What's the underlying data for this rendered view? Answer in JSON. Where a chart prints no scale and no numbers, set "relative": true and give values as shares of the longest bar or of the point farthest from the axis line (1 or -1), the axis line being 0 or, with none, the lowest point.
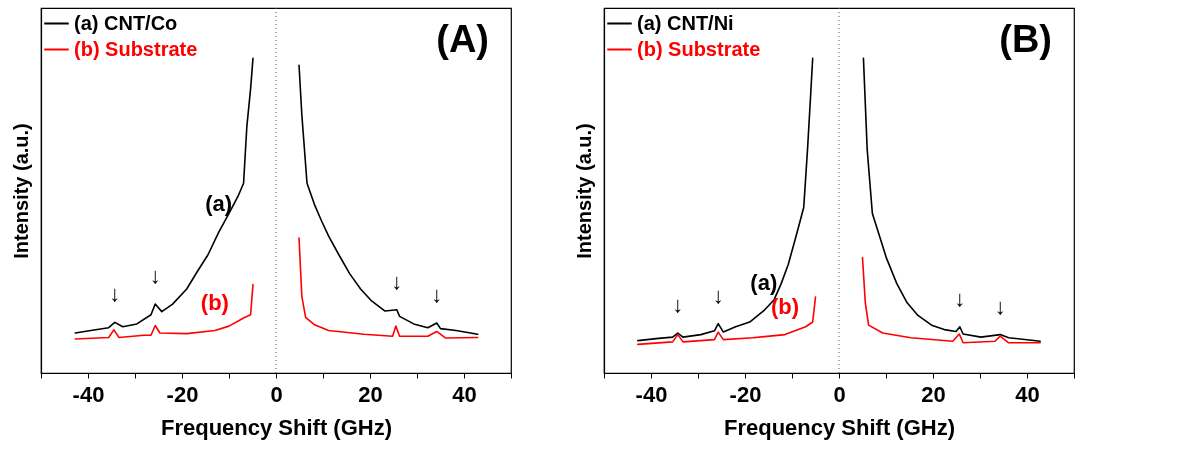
{
  "chart_data": [
    {
      "type": "line",
      "relative": true,
      "xlabel": "Frequency Shift (GHz)",
      "ylabel": "Intensity (a.u.)",
      "xlim": [
        -50,
        50
      ],
      "xticks": [
        {
          "value": -50,
          "label": null
        },
        -40,
        {
          "value": -30,
          "label": null
        },
        -20,
        {
          "value": -10,
          "label": null
        },
        0,
        {
          "value": 10,
          "label": null
        },
        20,
        {
          "value": 30,
          "label": null
        },
        40,
        {
          "value": 50,
          "label": null
        }
      ],
      "legend": "top left",
      "line_style": "solid",
      "grid": false,
      "series": [
        {
          "name": "(a) CNT/Co",
          "color": "#000000",
          "x": [
            -42.7,
            -39.4,
            -35.6,
            -34.3,
            -32.6,
            -29.6,
            -26.6,
            -25.7,
            -24.3,
            -22.0,
            -19.0,
            -16.8,
            -14.5,
            -12.2,
            -10.0,
            -8.1,
            -6.9,
            -6.2,
            -5.4,
            -4.9,
            0,
            4.9,
            5.5,
            6.6,
            8.3,
            9.7,
            11.2,
            13.4,
            15.7,
            18.0,
            20.2,
            23.2,
            25.7,
            26.3,
            29.3,
            32.3,
            34.2,
            35.0,
            38.3,
            42.9
          ],
          "values": [
            0.127,
            0.135,
            0.144,
            0.161,
            0.147,
            0.156,
            0.185,
            0.219,
            0.195,
            0.219,
            0.267,
            0.321,
            0.375,
            0.447,
            0.507,
            0.561,
            0.603,
            0.784,
            0.904,
            1.0,
            null,
            0.978,
            0.82,
            0.603,
            0.531,
            0.483,
            0.435,
            0.375,
            0.315,
            0.267,
            0.231,
            0.197,
            0.201,
            0.18,
            0.156,
            0.144,
            0.159,
            0.141,
            0.135,
            0.123
          ]
        },
        {
          "name": "(b) Substrate",
          "color": "#ff0000",
          "x": [
            -42.7,
            -35.6,
            -34.5,
            -33.4,
            -28.1,
            -26.6,
            -25.7,
            -24.7,
            -19.0,
            -13.0,
            -10.0,
            -6.9,
            -5.4,
            -4.9,
            0,
            4.9,
            5.5,
            6.3,
            8.2,
            11.2,
            18.7,
            24.8,
            25.5,
            26.3,
            32.3,
            34.2,
            36.1,
            42.9
          ],
          "values": [
            0.108,
            0.113,
            0.137,
            0.113,
            0.12,
            0.12,
            0.151,
            0.127,
            0.125,
            0.135,
            0.149,
            0.175,
            0.185,
            0.281,
            null,
            0.429,
            0.243,
            0.177,
            0.153,
            0.135,
            0.123,
            0.117,
            0.149,
            0.117,
            0.117,
            0.132,
            0.111,
            0.113
          ]
        }
      ],
      "ref_lines": [
        {
          "axis": "x",
          "value": 0,
          "line_style": "dotted",
          "color": "#555555"
        }
      ],
      "annotations": [
        "(A)",
        {
          "text": "(a)",
          "x": -12.2,
          "y": 0.447
        },
        {
          "text": "(b)",
          "x": -13.0,
          "y": 0.135
        },
        {
          "text": "↓",
          "x": -34.3,
          "y": 0.161
        },
        {
          "text": "↓",
          "x": -25.7,
          "y": 0.219
        },
        {
          "text": "↓",
          "x": 25.7,
          "y": 0.201
        },
        {
          "text": "↓",
          "x": 34.2,
          "y": 0.159
        }
      ]
    },
    {
      "type": "line",
      "relative": true,
      "xlabel": "Frequency Shift (GHz)",
      "ylabel": "Intensity (a.u.)",
      "xlim": [
        -50,
        50
      ],
      "xticks": [
        {
          "value": -50,
          "label": null
        },
        -40,
        {
          "value": -30,
          "label": null
        },
        -20,
        {
          "value": -10,
          "label": null
        },
        0,
        {
          "value": 10,
          "label": null
        },
        20,
        {
          "value": 30,
          "label": null
        },
        40,
        {
          "value": 50,
          "label": null
        }
      ],
      "legend": "top left",
      "line_style": "solid",
      "grid": false,
      "series": [
        {
          "name": "(a) CNT/Ni",
          "color": "#000000",
          "x": [
            -42.8,
            -38.4,
            -35.4,
            -34.3,
            -33.2,
            -29.4,
            -26.5,
            -25.7,
            -24.6,
            -22.0,
            -19.0,
            -16.0,
            -13.8,
            -12.3,
            -10.8,
            -9.3,
            -8.2,
            -7.5,
            -6.7,
            -6.0,
            -5.6,
            0,
            5.2,
            6.0,
            7.1,
            8.6,
            10.1,
            12.3,
            14.5,
            16.8,
            19.7,
            22.7,
            24.9,
            25.7,
            26.4,
            30.2,
            34.3,
            36.1,
            42.8
          ],
          "values": [
            0.103,
            0.11,
            0.114,
            0.127,
            0.114,
            0.122,
            0.134,
            0.157,
            0.13,
            0.147,
            0.162,
            0.198,
            0.233,
            0.284,
            0.345,
            0.426,
            0.487,
            0.527,
            0.71,
            0.892,
            1.0,
            null,
            1.0,
            0.71,
            0.507,
            0.436,
            0.365,
            0.284,
            0.223,
            0.183,
            0.152,
            0.137,
            0.132,
            0.147,
            0.124,
            0.114,
            0.122,
            0.112,
            0.101
          ]
        },
        {
          "name": "(b) Substrate",
          "color": "#ff0000",
          "x": [
            -42.8,
            -35.4,
            -34.3,
            -33.2,
            -26.5,
            -25.7,
            -24.6,
            -18.3,
            -11.5,
            -7.1,
            -5.6,
            -5.0,
            0,
            5.0,
            5.6,
            6.3,
            9.3,
            15.3,
            24.2,
            25.6,
            26.4,
            33.2,
            34.3,
            36.1,
            42.8
          ],
          "values": [
            0.091,
            0.099,
            0.122,
            0.099,
            0.106,
            0.13,
            0.106,
            0.112,
            0.122,
            0.147,
            0.162,
            0.241,
            null,
            0.367,
            0.223,
            0.152,
            0.127,
            0.112,
            0.101,
            0.124,
            0.096,
            0.101,
            0.117,
            0.096,
            0.096
          ]
        }
      ],
      "ref_lines": [
        {
          "axis": "x",
          "value": 0,
          "line_style": "dotted",
          "color": "#555555"
        }
      ],
      "annotations": [
        "(B)",
        {
          "text": "(a)",
          "x": -16.0,
          "y": 0.198
        },
        {
          "text": "(b)",
          "x": -11.5,
          "y": 0.122
        },
        {
          "text": "↓",
          "x": -34.3,
          "y": 0.127
        },
        {
          "text": "↓",
          "x": -25.7,
          "y": 0.157
        },
        {
          "text": "↓",
          "x": 25.7,
          "y": 0.147
        },
        {
          "text": "↓",
          "x": 34.3,
          "y": 0.122
        }
      ]
    }
  ]
}
